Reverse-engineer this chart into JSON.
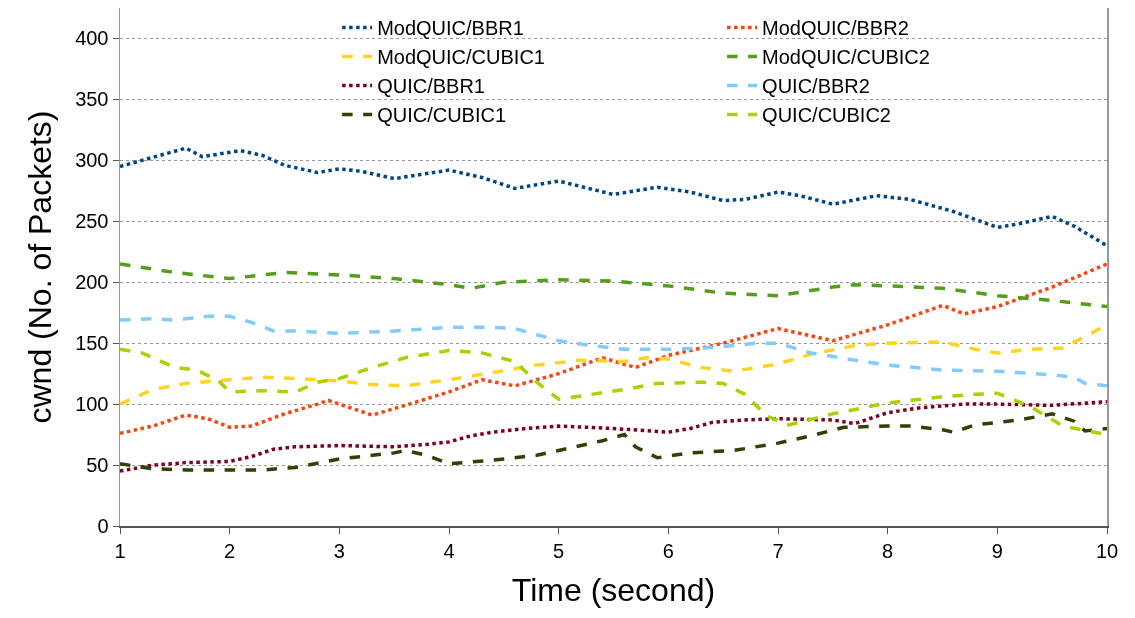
{
  "chart_data": {
    "type": "line",
    "xlabel": "Time (second)",
    "ylabel": "cwnd (No. of Packets)",
    "xlim": [
      1,
      10
    ],
    "xticks": [
      1,
      2,
      3,
      4,
      5,
      6,
      7,
      8,
      9,
      10
    ],
    "ylim": [
      0,
      425
    ],
    "yticks": [
      0,
      50,
      100,
      150,
      200,
      250,
      300,
      350,
      400
    ],
    "grid": "y",
    "legend": "top right",
    "marker": "none",
    "series": [
      {
        "name": "ModQUIC/BBR1",
        "color": "#004586",
        "line_style": "dotted",
        "x": [
          1,
          1.2,
          1.6,
          1.75,
          2.1,
          2.3,
          2.5,
          2.8,
          3,
          3.2,
          3.5,
          4,
          4.3,
          4.6,
          5,
          5.5,
          5.9,
          6.2,
          6.5,
          6.7,
          7,
          7.2,
          7.5,
          7.9,
          8.2,
          8.6,
          9,
          9.2,
          9.5,
          9.7,
          10
        ],
        "values": [
          295,
          300,
          310,
          303,
          308,
          304,
          296,
          290,
          293,
          291,
          285,
          292,
          286,
          277,
          283,
          272,
          278,
          274,
          267,
          268,
          274,
          271,
          264,
          271,
          268,
          258,
          245,
          248,
          254,
          246,
          230
        ]
      },
      {
        "name": "ModQUIC/BBR2",
        "color": "#ff420e",
        "line_style": "dotted",
        "x": [
          1,
          1.3,
          1.6,
          1.8,
          2,
          2.2,
          2.5,
          2.8,
          2.9,
          3.1,
          3.3,
          3.6,
          4,
          4.3,
          4.6,
          5,
          5.4,
          5.7,
          6,
          6.5,
          7,
          7.2,
          7.5,
          8,
          8.5,
          8.7,
          9,
          9.5,
          10
        ],
        "values": [
          76,
          82,
          91,
          88,
          81,
          82,
          92,
          100,
          103,
          97,
          91,
          99,
          110,
          120,
          115,
          125,
          138,
          130,
          140,
          150,
          162,
          158,
          152,
          165,
          181,
          174,
          180,
          196,
          215
        ]
      },
      {
        "name": "ModQUIC/CUBIC1",
        "color": "#ffd320",
        "line_style": "dashed",
        "x": [
          1,
          1.3,
          1.6,
          2,
          2.3,
          2.6,
          3,
          3.3,
          3.6,
          4,
          4.4,
          4.8,
          5.2,
          5.6,
          5.8,
          6,
          6.3,
          6.6,
          7,
          7.3,
          7.7,
          8,
          8.5,
          8.8,
          9,
          9.3,
          9.6,
          10
        ],
        "values": [
          100,
          112,
          117,
          120,
          122,
          121,
          119,
          116,
          115,
          120,
          126,
          132,
          136,
          135,
          138,
          137,
          130,
          127,
          133,
          141,
          148,
          150,
          151,
          145,
          142,
          145,
          146,
          165
        ]
      },
      {
        "name": "ModQUIC/CUBIC2",
        "color": "#579d1c",
        "line_style": "dashed",
        "x": [
          1,
          1.5,
          2,
          2.2,
          2.5,
          3,
          3.5,
          4,
          4.2,
          4.5,
          5,
          5.5,
          6,
          6.5,
          7,
          7.5,
          7.7,
          8,
          8.5,
          9,
          9.5,
          10
        ],
        "values": [
          215,
          208,
          203,
          205,
          208,
          206,
          203,
          198,
          195,
          200,
          202,
          201,
          197,
          191,
          189,
          196,
          198,
          197,
          195,
          189,
          185,
          180
        ]
      },
      {
        "name": "QUIC/BBR1",
        "color": "#7e0021",
        "line_style": "dotted",
        "x": [
          1,
          1.3,
          1.6,
          2,
          2.2,
          2.4,
          2.6,
          3,
          3.5,
          3.8,
          4,
          4.2,
          4.4,
          4.7,
          5,
          5.5,
          6,
          6.2,
          6.4,
          6.7,
          7,
          7.5,
          7.7,
          8,
          8.3,
          8.7,
          9,
          9.5,
          10
        ],
        "values": [
          45,
          50,
          52,
          53,
          57,
          63,
          65,
          66,
          65,
          67,
          69,
          74,
          77,
          80,
          82,
          80,
          77,
          80,
          85,
          87,
          88,
          87,
          84,
          93,
          97,
          100,
          100,
          99,
          102
        ]
      },
      {
        "name": "QUIC/BBR2",
        "color": "#83caff",
        "line_style": "dashed",
        "x": [
          1,
          1.3,
          1.5,
          1.8,
          2,
          2.2,
          2.4,
          2.6,
          3,
          3.5,
          4,
          4.4,
          4.6,
          5,
          5.3,
          5.6,
          6,
          6.3,
          6.6,
          6.8,
          7,
          7.3,
          7.7,
          8,
          8.5,
          9,
          9.5,
          9.7,
          9.8,
          10
        ],
        "values": [
          169,
          170,
          169,
          172,
          172,
          167,
          160,
          160,
          158,
          160,
          163,
          163,
          162,
          152,
          148,
          145,
          145,
          146,
          148,
          150,
          150,
          142,
          136,
          132,
          128,
          127,
          124,
          122,
          117,
          115
        ]
      },
      {
        "name": "QUIC/CUBIC1",
        "color": "#314004",
        "line_style": "dashed",
        "x": [
          1,
          1.3,
          1.6,
          2,
          2.3,
          2.6,
          3,
          3.5,
          3.6,
          3.8,
          4,
          4.4,
          4.8,
          5,
          5.4,
          5.6,
          5.7,
          5.9,
          6.2,
          6.6,
          7,
          7.3,
          7.6,
          8,
          8.2,
          8.5,
          8.6,
          8.8,
          9.2,
          9.5,
          9.7,
          9.8,
          10
        ],
        "values": [
          51,
          47,
          46,
          46,
          46,
          48,
          55,
          60,
          62,
          58,
          51,
          54,
          58,
          62,
          70,
          75,
          65,
          56,
          60,
          62,
          68,
          74,
          81,
          82,
          82,
          79,
          77,
          83,
          87,
          92,
          86,
          78,
          80
        ]
      },
      {
        "name": "QUIC/CUBIC2",
        "color": "#aecf00",
        "line_style": "dashed",
        "x": [
          1,
          1.2,
          1.5,
          1.7,
          1.9,
          2,
          2.3,
          2.6,
          2.8,
          3,
          3.3,
          3.6,
          4,
          4.3,
          4.6,
          4.8,
          5,
          5.3,
          5.6,
          5.9,
          6.3,
          6.5,
          6.7,
          6.9,
          7.1,
          7.5,
          8,
          8.5,
          8.8,
          9,
          9.3,
          9.6,
          10
        ],
        "values": [
          145,
          142,
          130,
          128,
          119,
          110,
          111,
          110,
          118,
          121,
          130,
          138,
          144,
          142,
          135,
          118,
          104,
          108,
          112,
          117,
          118,
          117,
          108,
          90,
          83,
          92,
          101,
          106,
          108,
          109,
          98,
          82,
          75
        ]
      }
    ]
  }
}
